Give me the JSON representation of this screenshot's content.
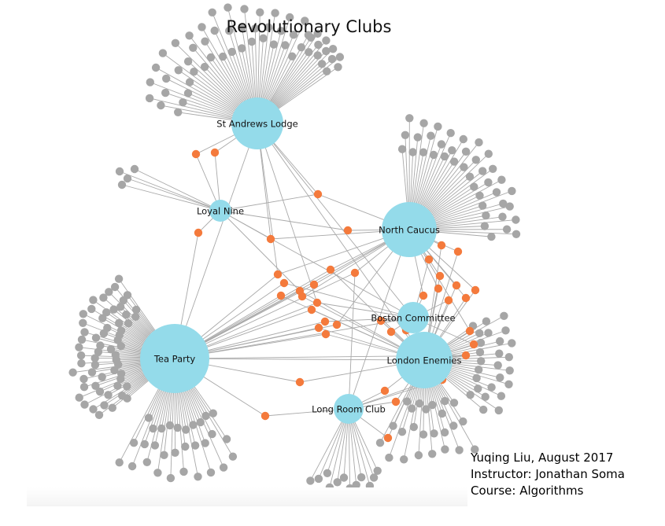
{
  "title": "Revolutionary Clubs",
  "credits": {
    "author": "Yuqing Liu, August 2017",
    "instructor": "Instructor: Jonathan Soma",
    "course": "Course: Algorithms"
  },
  "colors": {
    "club": "#94dbea",
    "member_single": "#a6a6a6",
    "member_multi": "#f47a3c",
    "edge": "#a9a9a9"
  },
  "clubs": [
    {
      "id": "st-andrews",
      "label": "St Andrews Lodge"
    },
    {
      "id": "loyal-nine",
      "label": "Loyal Nine"
    },
    {
      "id": "north-caucus",
      "label": "North Caucus"
    },
    {
      "id": "tea-party",
      "label": "Tea Party"
    },
    {
      "id": "boston-committee",
      "label": "Boston Committee"
    },
    {
      "id": "london-enemies",
      "label": "London Enemies"
    },
    {
      "id": "long-room",
      "label": "Long Room Club"
    }
  ]
}
